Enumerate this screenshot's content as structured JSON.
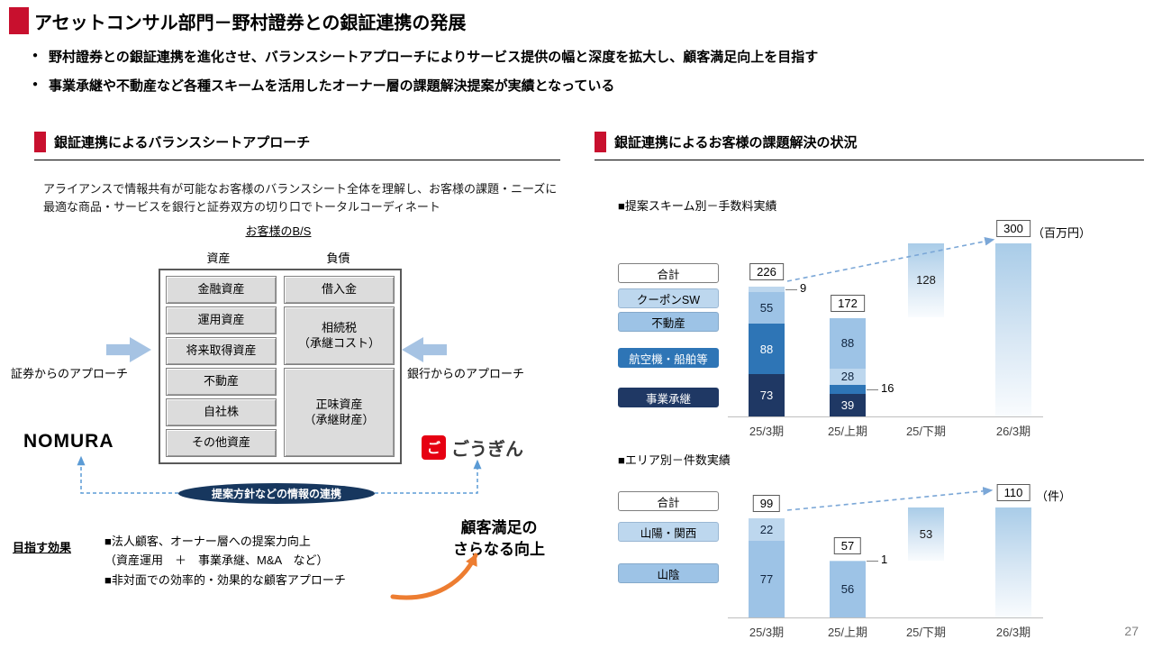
{
  "page_number": "27",
  "colors": {
    "accent_red": "#C8102E",
    "navy": "#1F3864",
    "mid_blue": "#2E75B6",
    "light_blue": "#9DC3E6",
    "pale_blue": "#BDD7EE",
    "dashed_arrow_blue": "#7BA7D7",
    "orange": "#ED7D31",
    "gogin_red": "#E60012"
  },
  "header": {
    "title": "アセットコンサル部門－野村證券との銀証連携の発展",
    "bullets": [
      "野村證券との銀証連携を進化させ、バランスシートアプローチによりサービス提供の幅と深度を拡大し、顧客満足向上を目指す",
      "事業承継や不動産など各種スキームを活用したオーナー層の課題解決提案が実績となっている"
    ]
  },
  "left_panel": {
    "section_title": "銀証連携によるバランスシートアプローチ",
    "description": "アライアンスで情報共有が可能なお客様のバランスシート全体を理解し、お客様の課題・ニーズに最適な商品・サービスを銀行と証券双方の切り口でトータルコーディネート",
    "bs_title": "お客様のB/S",
    "assets_header": "資産",
    "liabilities_header": "負債",
    "assets": [
      "金融資産",
      "運用資産",
      "将来取得資産",
      "不動産",
      "自社株",
      "その他資産"
    ],
    "liabilities": [
      "借入金",
      "相続税\n（承継コスト）",
      "正味資産\n（承継財産）"
    ],
    "securities_approach_label": "証券からのアプローチ",
    "bank_approach_label": "銀行からのアプローチ",
    "nomura_logo_text": "NOMURA",
    "gogin_mark_glyph": "ご",
    "gogin_logo_text": "ごうぎん",
    "connector_label": "提案方針などの情報の連携",
    "effects_heading": "目指す効果",
    "effects_lines": [
      "■法人顧客、オーナー層への提案力向上",
      "（資産運用　＋　事業承継、M&A　など）",
      "■非対面での効率的・効果的な顧客アプローチ"
    ],
    "outcome_line1": "顧客満足の",
    "outcome_line2": "さらなる向上"
  },
  "right_panel": {
    "section_title": "銀証連携によるお客様の課題解決の状況"
  },
  "chart_data": [
    {
      "type": "bar",
      "subtype": "stacked",
      "title": "■提案スキーム別－手数料実績",
      "unit": "（百万円）",
      "categories": [
        "25/3期",
        "25/上期",
        "25/下期",
        "26/3期"
      ],
      "ylim": [
        0,
        310
      ],
      "legend_position": "left",
      "grid": false,
      "legend": [
        {
          "label": "合計",
          "style": "outline"
        },
        {
          "label": "クーポンSW",
          "style": "pale"
        },
        {
          "label": "不動産",
          "style": "light"
        },
        {
          "label": "航空機・船舶等",
          "style": "mid"
        },
        {
          "label": "事業承継",
          "style": "dark"
        }
      ],
      "bars": [
        {
          "category": "25/3期",
          "total": 226,
          "segments": [
            {
              "name": "事業承継",
              "value": 73,
              "style": "dark",
              "label": "73"
            },
            {
              "name": "航空機・船舶等",
              "value": 88,
              "style": "mid",
              "label": "88"
            },
            {
              "name": "不動産",
              "value": 55,
              "style": "light",
              "label": "55"
            },
            {
              "name": "クーポンSW",
              "value": 9,
              "style": "pale",
              "callout": "9"
            }
          ]
        },
        {
          "category": "25/上期",
          "total": 172,
          "segments": [
            {
              "name": "事業承継",
              "value": 39,
              "style": "dark",
              "label": "39"
            },
            {
              "name": "航空機・船舶等",
              "value": 16,
              "style": "mid",
              "callout": "16"
            },
            {
              "name": "クーポンSW",
              "value": 28,
              "style": "pale",
              "label": "28"
            },
            {
              "name": "不動産",
              "value": 88,
              "style": "light",
              "label": "88"
            }
          ]
        },
        {
          "category": "25/下期",
          "forecast": true,
          "base": 172,
          "value": 128,
          "label": "128"
        },
        {
          "category": "26/3期",
          "forecast": true,
          "base": 0,
          "value": 300,
          "total": 300
        }
      ]
    },
    {
      "type": "bar",
      "subtype": "stacked",
      "title": "■エリア別－件数実績",
      "unit": "（件）",
      "categories": [
        "25/3期",
        "25/上期",
        "25/下期",
        "26/3期"
      ],
      "ylim": [
        0,
        120
      ],
      "legend_position": "left",
      "grid": false,
      "legend": [
        {
          "label": "合計",
          "style": "outline"
        },
        {
          "label": "山陽・関西",
          "style": "pale"
        },
        {
          "label": "山陰",
          "style": "light"
        }
      ],
      "bars": [
        {
          "category": "25/3期",
          "total": 99,
          "segments": [
            {
              "name": "山陰",
              "value": 77,
              "style": "light",
              "label": "77"
            },
            {
              "name": "山陽・関西",
              "value": 22,
              "style": "pale",
              "label": "22"
            }
          ]
        },
        {
          "category": "25/上期",
          "total": 57,
          "segments": [
            {
              "name": "山陰",
              "value": 56,
              "style": "light",
              "label": "56"
            },
            {
              "name": "山陽・関西",
              "value": 1,
              "style": "pale",
              "callout": "1"
            }
          ]
        },
        {
          "category": "25/下期",
          "forecast": true,
          "base": 57,
          "value": 53,
          "label": "53"
        },
        {
          "category": "26/3期",
          "forecast": true,
          "base": 0,
          "value": 110,
          "total": 110
        }
      ]
    }
  ]
}
